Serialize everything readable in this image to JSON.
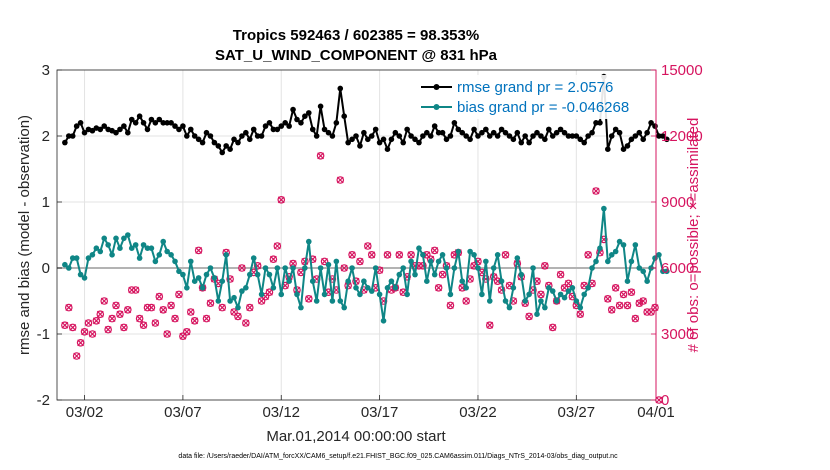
{
  "chart_data": {
    "type": "line",
    "title": "Tropics 592463 / 602385 = 98.353%",
    "subtitle": "SAT_U_WIND_COMPONENT @ 831 hPa",
    "xlabel": "Mar.01,2014 00:00:00 start",
    "ylabel": "rmse and bias (model - observation)",
    "y2label": "# of obs: o=possible; ×=assimilated",
    "footnote": "data file: /Users/raeder/DAI/ATM_forcXX/CAM6_setup/f.e21.FHIST_BGC.f09_025.CAM6assim.011/Diags_NTrS_2014-03/obs_diag_output.nc",
    "ylim": [
      -2,
      3
    ],
    "y2lim": [
      0,
      15000
    ],
    "xlim": [
      0.6,
      31.05
    ],
    "x_ticks": [
      {
        "v": 2,
        "label": "03/02"
      },
      {
        "v": 7,
        "label": "03/07"
      },
      {
        "v": 12,
        "label": "03/12"
      },
      {
        "v": 17,
        "label": "03/17"
      },
      {
        "v": 22,
        "label": "03/22"
      },
      {
        "v": 27,
        "label": "03/27"
      },
      {
        "v": 32,
        "label": "04/01"
      }
    ],
    "y_ticks": [
      "-2",
      "-1",
      "0",
      "1",
      "2",
      "3"
    ],
    "y2_ticks": [
      "0",
      "3000",
      "6000",
      "9000",
      "12000",
      "15000"
    ],
    "legend": [
      "rmse grand pr = 2.0576",
      "bias grand pr = -0.046268"
    ],
    "colors": {
      "rmse": "#000000",
      "bias": "#0f8686",
      "obs": "#d6145f",
      "grid": "#e3e3e3",
      "zero": "#b3b3b3"
    },
    "series": [
      {
        "name": "rmse",
        "values": [
          1.9,
          2.0,
          2.0,
          2.15,
          2.2,
          2.05,
          2.1,
          2.08,
          2.12,
          2.1,
          2.15,
          2.1,
          2.08,
          2.05,
          2.1,
          2.15,
          2.05,
          2.25,
          2.2,
          2.3,
          2.2,
          2.1,
          2.25,
          2.2,
          2.25,
          2.2,
          2.2,
          2.2,
          2.15,
          2.1,
          2.15,
          2.0,
          2.1,
          2.0,
          1.95,
          1.9,
          2.05,
          2.0,
          1.9,
          1.85,
          1.75,
          1.85,
          1.8,
          1.95,
          1.9,
          2.0,
          2.05,
          1.95,
          2.1,
          2.0,
          2.0,
          2.15,
          2.2,
          2.1,
          2.1,
          2.15,
          2.2,
          2.15,
          2.4,
          2.25,
          2.2,
          2.3,
          2.35,
          2.1,
          2.0,
          2.45,
          2.1,
          2.05,
          2.0,
          2.2,
          2.72,
          2.3,
          1.9,
          1.95,
          2.0,
          1.85,
          2.05,
          1.95,
          2.0,
          2.1,
          1.9,
          1.95,
          1.8,
          1.95,
          2.05,
          2.0,
          1.9,
          2.1,
          2.0,
          1.95,
          1.9,
          2.0,
          2.05,
          2.0,
          2.15,
          2.05,
          2.05,
          1.95,
          2.0,
          2.2,
          2.1,
          2.05,
          2.0,
          1.95,
          2.1,
          2.0,
          2.05,
          2.1,
          2.0,
          2.05,
          2.0,
          2.1,
          2.05,
          2.0,
          1.95,
          2.05,
          1.9,
          2.0,
          1.9,
          2.0,
          2.05,
          2.0,
          1.95,
          2.1,
          2.0,
          2.05,
          2.1,
          2.05,
          2.0,
          2.0,
          2.0,
          1.95,
          1.9,
          2.0,
          2.05,
          2.2,
          2.2,
          2.9,
          1.8,
          2.0,
          2.1,
          2.05,
          1.8,
          1.85,
          1.95,
          2.0,
          2.05,
          1.95,
          2.05,
          2.2,
          2.15,
          2.0,
          2.0,
          1.95
        ]
      },
      {
        "name": "bias",
        "values": [
          0.05,
          0.0,
          0.15,
          0.15,
          -0.1,
          -0.15,
          0.15,
          0.2,
          0.3,
          0.25,
          0.45,
          0.35,
          0.2,
          0.45,
          0.3,
          0.45,
          0.5,
          0.3,
          0.35,
          0.15,
          0.35,
          0.3,
          0.3,
          0.1,
          0.2,
          0.4,
          0.25,
          0.2,
          0.1,
          -0.05,
          -0.1,
          -0.3,
          0.1,
          -0.2,
          -0.15,
          -0.3,
          -0.1,
          0.0,
          -0.15,
          -0.5,
          -0.2,
          0.2,
          -0.5,
          -0.45,
          -0.6,
          -0.35,
          -0.3,
          -0.1,
          0.15,
          -0.1,
          -0.4,
          0.0,
          -0.1,
          -0.3,
          0.0,
          -0.4,
          0.0,
          -0.2,
          0.0,
          -0.4,
          -0.6,
          0.0,
          0.4,
          -0.2,
          -0.5,
          0.0,
          -0.4,
          0.05,
          -0.5,
          0.1,
          -0.5,
          -0.6,
          -0.2,
          0.0,
          -0.3,
          -0.4,
          -0.2,
          -0.3,
          -0.35,
          0.0,
          -0.4,
          -0.8,
          -0.3,
          -0.2,
          -0.3,
          -0.1,
          0.0,
          -0.4,
          0.1,
          -0.1,
          0.3,
          0.2,
          -0.2,
          0.1,
          -0.1,
          0.1,
          0.2,
          0.0,
          -0.4,
          0.0,
          0.25,
          -0.2,
          -0.3,
          0.25,
          0.2,
          0.0,
          -0.4,
          0.1,
          -0.5,
          0.0,
          0.2,
          -0.2,
          -0.5,
          -0.6,
          -0.3,
          0.15,
          -0.1,
          -0.5,
          -0.4,
          0.0,
          -0.7,
          -0.5,
          -0.6,
          -0.3,
          -0.35,
          -0.5,
          -0.4,
          -0.45,
          -0.35,
          -0.3,
          -0.5,
          -0.6,
          -0.4,
          -0.3,
          0.0,
          0.1,
          0.3,
          0.9,
          0.1,
          0.2,
          0.25,
          0.4,
          0.35,
          -0.2,
          0.1,
          0.35,
          0.0,
          -0.05,
          -0.2,
          0.0,
          0.15,
          0.2,
          -0.05,
          -0.05
        ]
      },
      {
        "name": "possible_obs",
        "values": [
          3400,
          4200,
          3300,
          2000,
          2600,
          3100,
          3500,
          3000,
          3600,
          3900,
          4500,
          3200,
          3700,
          4300,
          3900,
          3300,
          4100,
          5000,
          5000,
          3700,
          3400,
          4200,
          4200,
          3500,
          4700,
          4100,
          3000,
          4300,
          3700,
          4800,
          2900,
          3100,
          4000,
          3600,
          6800,
          5100,
          3700,
          4400,
          5500,
          5300,
          4200,
          6700,
          5500,
          4000,
          3800,
          6000,
          3500,
          4200,
          5800,
          6100,
          4500,
          4700,
          4900,
          6400,
          7000,
          9100,
          5200,
          5600,
          6200,
          5000,
          5800,
          6300,
          4600,
          6400,
          5500,
          11100,
          6300,
          4900,
          5500,
          5000,
          10000,
          6000,
          5200,
          6600,
          5400,
          6300,
          5000,
          7000,
          6600,
          5100,
          5900,
          4500,
          6600,
          5000,
          5100,
          6600,
          4900,
          5600,
          6600,
          6100,
          6100,
          6100,
          6600,
          6400,
          6800,
          5100,
          5700,
          6100,
          4300,
          6600,
          6700,
          5100,
          4500,
          5500,
          6100,
          6300,
          5800,
          5500,
          3400,
          5600,
          5400,
          5000,
          6600,
          5200,
          4500,
          6200,
          5600,
          4400,
          3800,
          5000,
          5400,
          4800,
          6100,
          5200,
          3300,
          4500,
          5700,
          5100,
          5300,
          4700,
          4300,
          3900,
          5200,
          6600,
          5300,
          9500,
          6700,
          7300,
          4600,
          4100,
          5100,
          4300,
          4800,
          4300,
          4900,
          3700,
          4400,
          4500,
          4000,
          4000,
          4200,
          0
        ]
      }
    ]
  }
}
